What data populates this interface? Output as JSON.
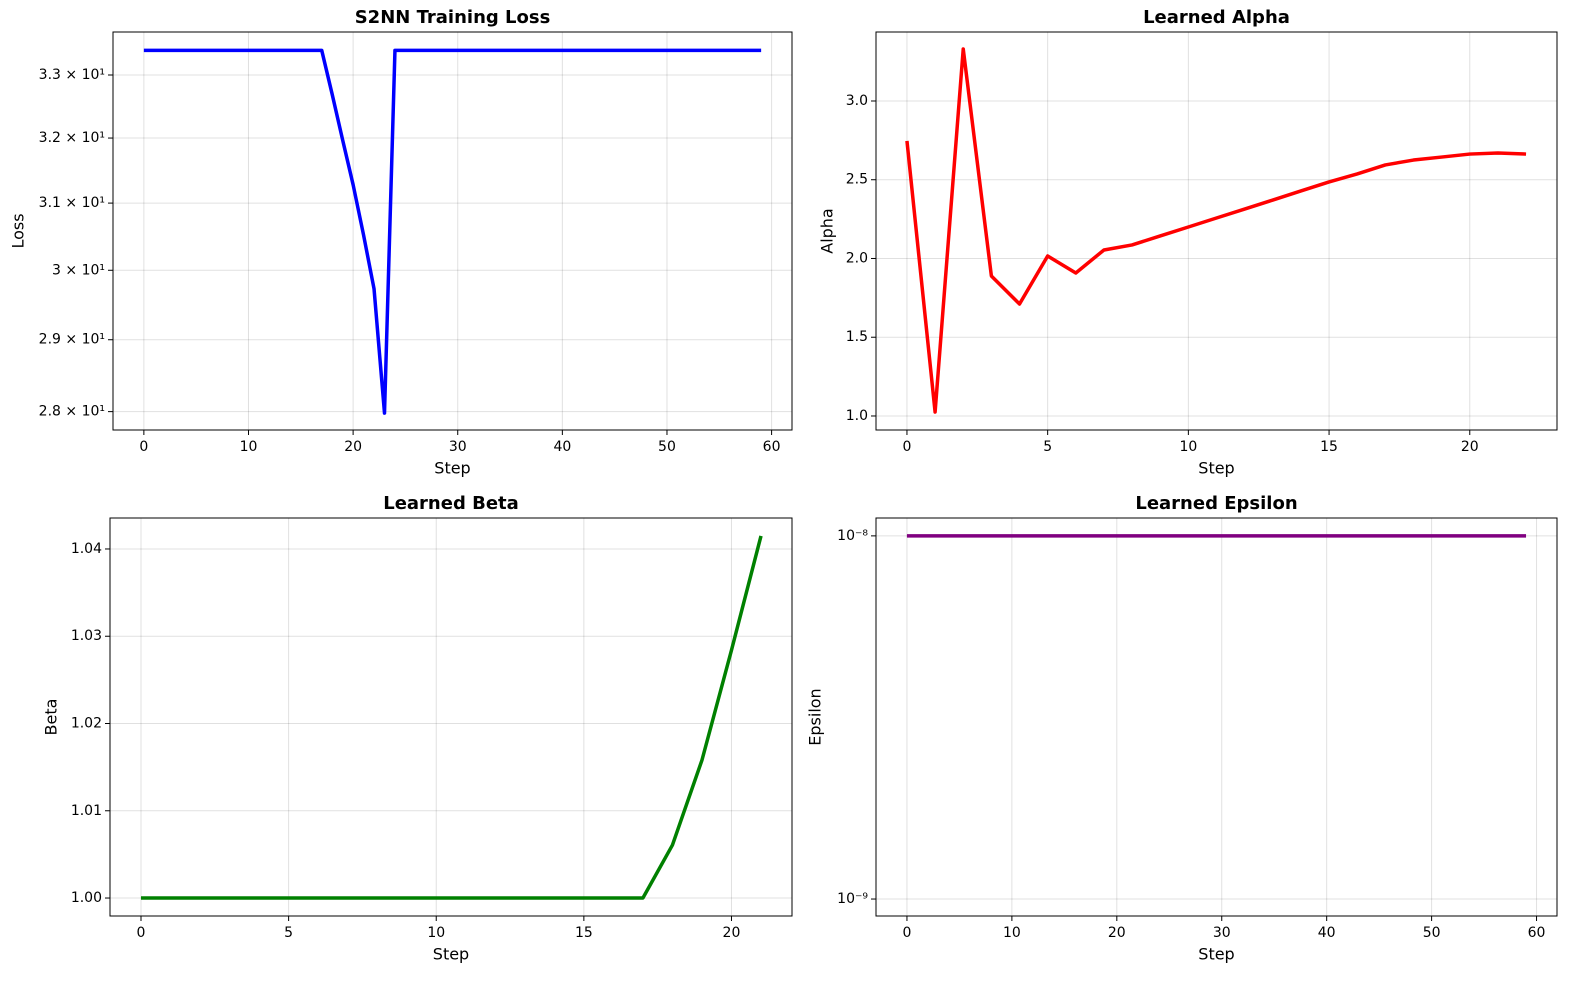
{
  "chart_data": [
    {
      "type": "line",
      "title": "S2NN Training Loss",
      "xlabel": "Step",
      "ylabel": "Loss",
      "log_y": true,
      "grid": true,
      "color": "#0000ff",
      "x": [
        0,
        1,
        2,
        3,
        4,
        5,
        6,
        7,
        8,
        9,
        10,
        11,
        12,
        13,
        14,
        15,
        16,
        17,
        18,
        19,
        20,
        21,
        22,
        23,
        24,
        25,
        26,
        27,
        28,
        29,
        30,
        31,
        32,
        33,
        34,
        35,
        36,
        37,
        38,
        39,
        40,
        41,
        42,
        43,
        44,
        45,
        46,
        47,
        48,
        49,
        50,
        51,
        52,
        53,
        54,
        55,
        56,
        57,
        58,
        59
      ],
      "values": [
        33.4,
        33.4,
        33.4,
        33.4,
        33.4,
        33.4,
        33.4,
        33.4,
        33.4,
        33.4,
        33.4,
        33.4,
        33.4,
        33.4,
        33.4,
        33.4,
        33.4,
        33.4,
        32.69,
        31.97,
        31.28,
        30.52,
        29.73,
        27.98,
        33.4,
        33.4,
        33.4,
        33.4,
        33.4,
        33.4,
        33.4,
        33.4,
        33.4,
        33.4,
        33.4,
        33.4,
        33.4,
        33.4,
        33.4,
        33.4,
        33.4,
        33.4,
        33.4,
        33.4,
        33.4,
        33.4,
        33.4,
        33.4,
        33.4,
        33.4,
        33.4,
        33.4,
        33.4,
        33.4,
        33.4,
        33.4,
        33.4,
        33.4,
        33.4,
        33.4
      ],
      "xlim": [
        -2.95,
        61.95
      ],
      "xticks": [
        0,
        10,
        20,
        30,
        40,
        50,
        60
      ],
      "ylim": [
        27.75,
        33.7
      ],
      "yticks": [
        {
          "value": 28,
          "label": "2.8 × 10¹"
        },
        {
          "value": 29,
          "label": "2.9 × 10¹"
        },
        {
          "value": 30,
          "label": "3 × 10¹"
        },
        {
          "value": 31,
          "label": "3.1 × 10¹"
        },
        {
          "value": 32,
          "label": "3.2 × 10¹"
        },
        {
          "value": 33,
          "label": "3.3 × 10¹"
        }
      ]
    },
    {
      "type": "line",
      "title": "Learned Alpha",
      "xlabel": "Step",
      "ylabel": "Alpha",
      "log_y": false,
      "grid": true,
      "color": "#ff0000",
      "x": [
        0,
        1,
        2,
        3,
        4,
        5,
        6,
        7,
        8,
        9,
        10,
        11,
        12,
        13,
        14,
        15,
        16,
        17,
        18,
        19,
        20,
        21,
        22
      ],
      "values": [
        2.746,
        1.025,
        3.33,
        1.889,
        1.711,
        2.016,
        1.908,
        2.054,
        2.086,
        2.143,
        2.2,
        2.257,
        2.314,
        2.371,
        2.429,
        2.486,
        2.537,
        2.594,
        2.625,
        2.644,
        2.663,
        2.67,
        2.663
      ],
      "xlim": [
        -1.1,
        23.1
      ],
      "xticks": [
        0,
        5,
        10,
        15,
        20
      ],
      "ylim": [
        0.911,
        3.438
      ],
      "yticks": [
        {
          "value": 1,
          "label": "1.0"
        },
        1.5,
        {
          "value": 2,
          "label": "2.0"
        },
        2.5,
        {
          "value": 3,
          "label": "3.0"
        }
      ]
    },
    {
      "type": "line",
      "title": "Learned Beta",
      "xlabel": "Step",
      "ylabel": "Beta",
      "log_y": false,
      "grid": true,
      "color": "#008000",
      "x": [
        0,
        1,
        2,
        3,
        4,
        5,
        6,
        7,
        8,
        9,
        10,
        11,
        12,
        13,
        14,
        15,
        16,
        17,
        18,
        19,
        20,
        21
      ],
      "values": [
        1,
        1,
        1,
        1,
        1,
        1,
        1,
        1,
        1,
        1,
        1,
        1,
        1,
        1,
        1,
        1,
        1,
        1,
        1.00607,
        1.0158,
        1.0284,
        1.0415
      ],
      "xlim": [
        -1.05,
        22.05
      ],
      "xticks": [
        0,
        5,
        10,
        15,
        20
      ],
      "ylim": [
        0.99794,
        1.04355
      ],
      "yticks": [
        {
          "value": 1,
          "label": "1.00"
        },
        1.01,
        1.02,
        1.03,
        1.04
      ]
    },
    {
      "type": "line",
      "title": "Learned Epsilon",
      "xlabel": "Step",
      "ylabel": "Epsilon",
      "log_y": true,
      "grid": true,
      "color": "#800080",
      "x": [
        0,
        1,
        2,
        3,
        4,
        5,
        6,
        7,
        8,
        9,
        10,
        11,
        12,
        13,
        14,
        15,
        16,
        17,
        18,
        19,
        20,
        21,
        22,
        23,
        24,
        25,
        26,
        27,
        28,
        29,
        30,
        31,
        32,
        33,
        34,
        35,
        36,
        37,
        38,
        39,
        40,
        41,
        42,
        43,
        44,
        45,
        46,
        47,
        48,
        49,
        50,
        51,
        52,
        53,
        54,
        55,
        56,
        57,
        58,
        59
      ],
      "values": [
        1e-08,
        1e-08,
        1e-08,
        1e-08,
        1e-08,
        1e-08,
        1e-08,
        1e-08,
        1e-08,
        1e-08,
        1e-08,
        1e-08,
        1e-08,
        1e-08,
        1e-08,
        1e-08,
        1e-08,
        1e-08,
        1e-08,
        1e-08,
        1e-08,
        1e-08,
        1e-08,
        1e-08,
        1e-08,
        1e-08,
        1e-08,
        1e-08,
        1e-08,
        1e-08,
        1e-08,
        1e-08,
        1e-08,
        1e-08,
        1e-08,
        1e-08,
        1e-08,
        1e-08,
        1e-08,
        1e-08,
        1e-08,
        1e-08,
        1e-08,
        1e-08,
        1e-08,
        1e-08,
        1e-08,
        1e-08,
        1e-08,
        1e-08,
        1e-08,
        1e-08,
        1e-08,
        1e-08,
        1e-08,
        1e-08,
        1e-08,
        1e-08,
        1e-08,
        1e-08
      ],
      "xlim": [
        -2.95,
        61.95
      ],
      "xticks": [
        0,
        10,
        20,
        30,
        40,
        50,
        60
      ],
      "ylim": [
        8.98e-10,
        1.12e-08
      ],
      "yticks": [
        {
          "value": 1e-09,
          "label": "10⁻⁹"
        },
        {
          "value": 1e-08,
          "label": "10⁻⁸"
        }
      ]
    }
  ]
}
